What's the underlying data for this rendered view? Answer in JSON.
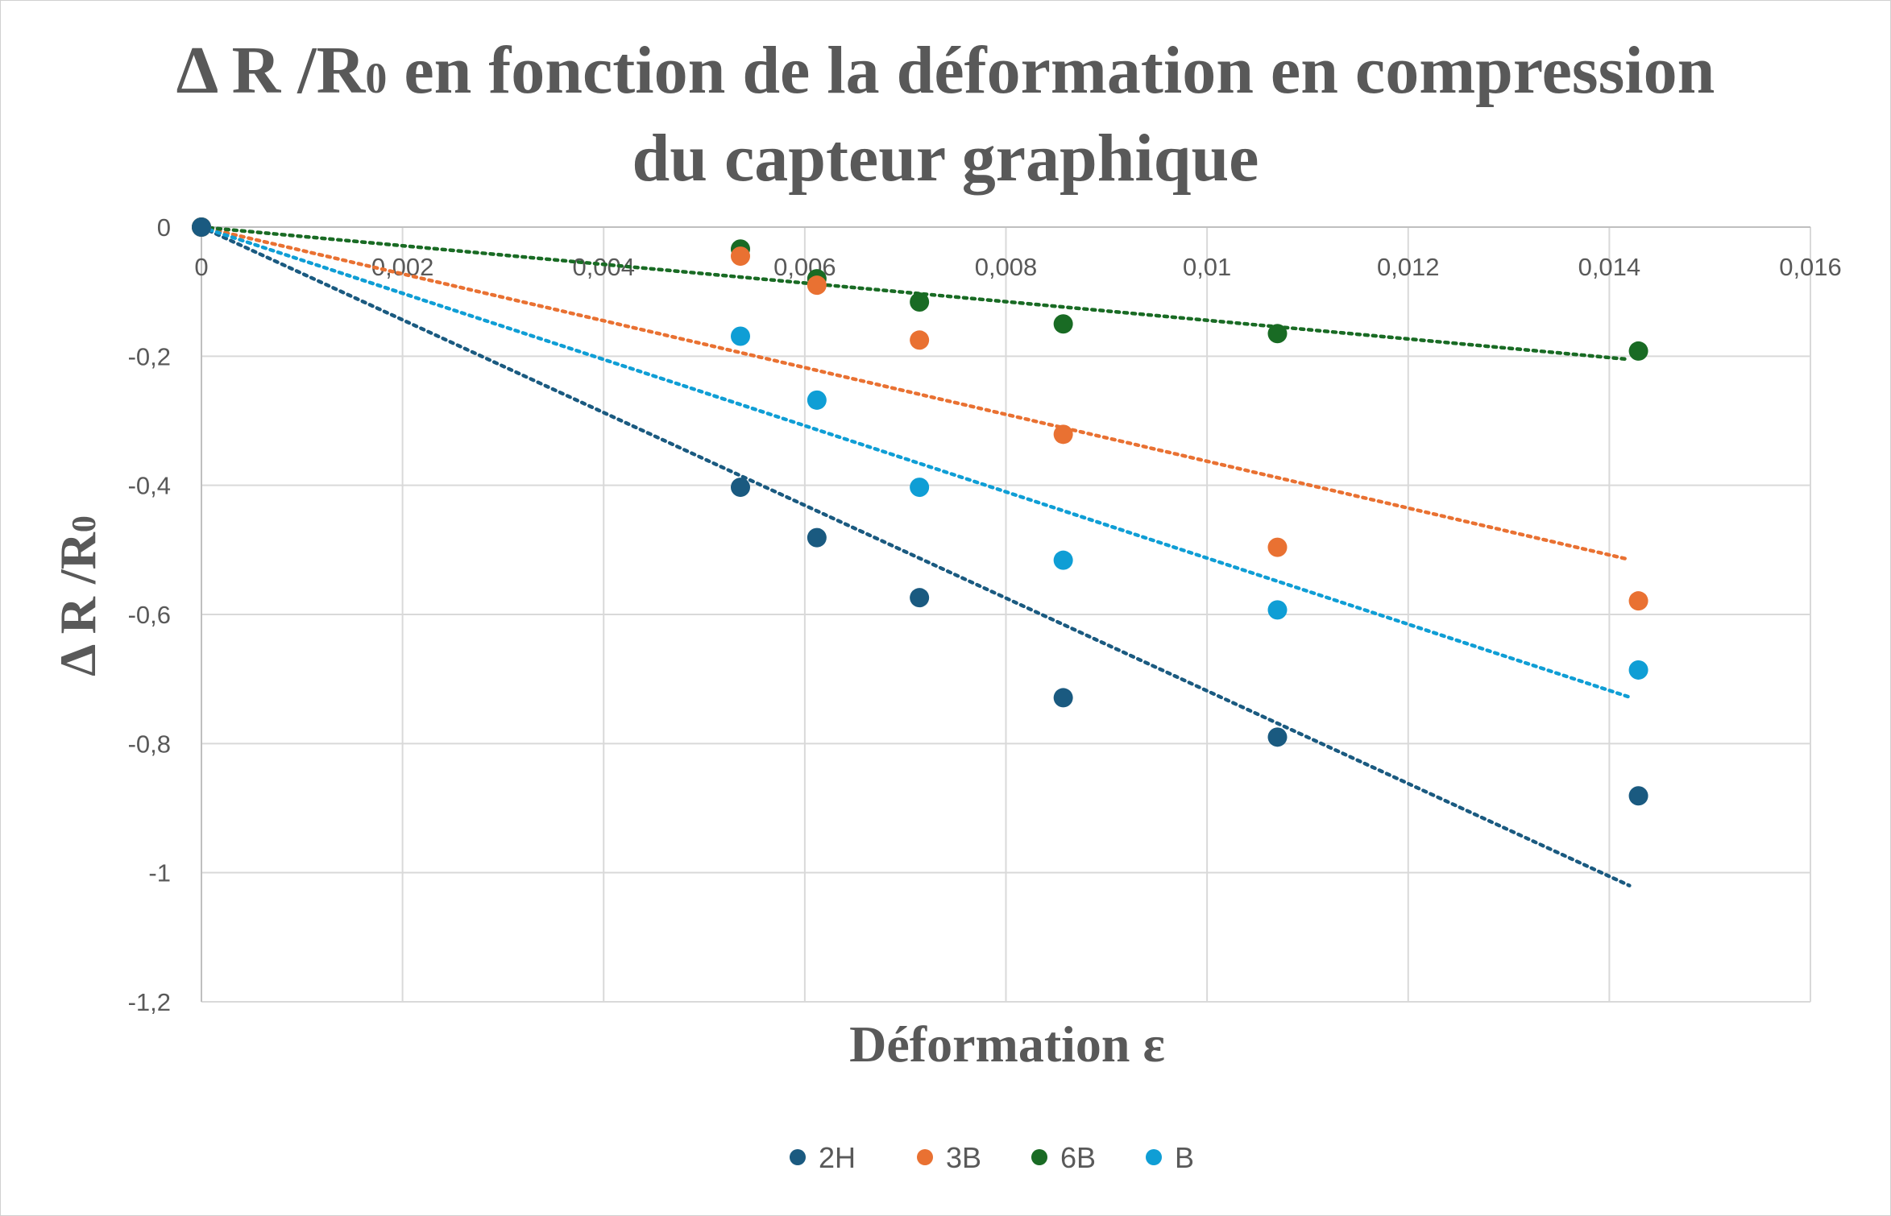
{
  "chart_data": {
    "type": "scatter",
    "title": {
      "main_prefix": "Δ R /R",
      "sub": "0",
      "main_suffix": " en fonction de la déformation en compression",
      "line2": "du capteur graphique"
    },
    "xlabel": "Déformation ε",
    "ylabel": {
      "main": "Δ R /R",
      "sub": "0"
    },
    "xlim": [
      0,
      0.016
    ],
    "ylim": [
      -1.2,
      0
    ],
    "x_ticks": [
      0,
      0.002,
      0.004,
      0.006,
      0.008,
      0.01,
      0.012,
      0.014,
      0.016
    ],
    "x_tick_labels": [
      "0",
      "0,002",
      "0,004",
      "0,006",
      "0,008",
      "0,01",
      "0,012",
      "0,014",
      "0,016"
    ],
    "y_ticks": [
      0,
      -0.2,
      -0.4,
      -0.6,
      -0.8,
      -1,
      -1.2
    ],
    "y_tick_labels": [
      "0",
      "-0,2",
      "-0,4",
      "-0,6",
      "-0,8",
      "-1",
      "-1,2"
    ],
    "grid": true,
    "legend_position": "bottom",
    "series": [
      {
        "name": "2H",
        "color": "#1a5a80",
        "x": [
          0,
          0.00536,
          0.00612,
          0.00714,
          0.00857,
          0.0107,
          0.01429
        ],
        "y": [
          0,
          -0.403,
          -0.481,
          -0.574,
          -0.729,
          -0.79,
          -0.881
        ],
        "trendline": {
          "x": [
            0,
            0.0142
          ],
          "y": [
            0,
            -1.02
          ]
        }
      },
      {
        "name": "3B",
        "color": "#e97132",
        "x": [
          0,
          0.00536,
          0.00612,
          0.00714,
          0.00857,
          0.0107,
          0.01429
        ],
        "y": [
          0,
          -0.045,
          -0.09,
          -0.175,
          -0.321,
          -0.496,
          -0.579
        ],
        "trendline": {
          "x": [
            0,
            0.0142
          ],
          "y": [
            0,
            -0.515
          ]
        }
      },
      {
        "name": "6B",
        "color": "#196b24",
        "x": [
          0,
          0.00536,
          0.00612,
          0.00714,
          0.00857,
          0.0107,
          0.01429
        ],
        "y": [
          0,
          -0.034,
          -0.08,
          -0.116,
          -0.15,
          -0.165,
          -0.192
        ],
        "trendline": {
          "x": [
            0,
            0.0142
          ],
          "y": [
            0,
            -0.205
          ]
        }
      },
      {
        "name": "B",
        "color": "#0f9ed5",
        "x": [
          0,
          0.00536,
          0.00612,
          0.00714,
          0.00857,
          0.0107,
          0.01429
        ],
        "y": [
          0,
          -0.169,
          -0.268,
          -0.403,
          -0.516,
          -0.593,
          -0.686
        ],
        "trendline": {
          "x": [
            0,
            0.0142
          ],
          "y": [
            0,
            -0.728
          ]
        }
      }
    ]
  }
}
